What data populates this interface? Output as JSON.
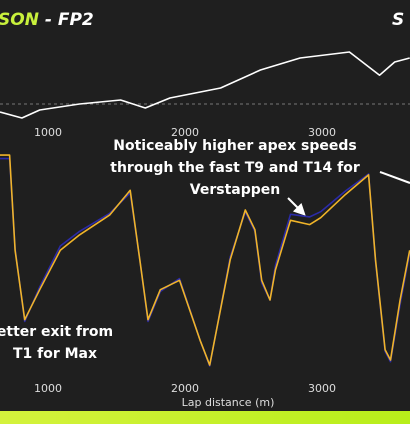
{
  "chart_data": [
    {
      "type": "line",
      "title_parts": [
        "SON",
        " - FP2"
      ],
      "title_right": "S",
      "x": [
        650,
        810,
        940,
        1230,
        1530,
        1710,
        1890,
        2260,
        2550,
        2840,
        3200,
        3420,
        3530,
        3640
      ],
      "series": [
        {
          "color": "#ffffff",
          "values": [
            -0.1,
            -0.175,
            -0.075,
            0.0,
            0.05,
            -0.05,
            0.075,
            0.2,
            0.425,
            0.575,
            0.65,
            0.36,
            0.525,
            0.575
          ]
        }
      ],
      "xlim": [
        650,
        3642
      ],
      "ylim": [
        -0.2,
        0.8
      ],
      "xticks": [
        1000,
        2000,
        3000
      ],
      "zero_line": 0
    },
    {
      "type": "line",
      "x": [
        650,
        720,
        760,
        830,
        940,
        1090,
        1230,
        1450,
        1600,
        1670,
        1730,
        1820,
        1960,
        2110,
        2180,
        2330,
        2440,
        2510,
        2560,
        2620,
        2660,
        2770,
        2910,
        2990,
        3170,
        3340,
        3390,
        3460,
        3500,
        3570,
        3640
      ],
      "series": [
        {
          "color": "#2b2ba8",
          "values": [
            330,
            330,
            225,
            140,
            180,
            228,
            245,
            266,
            290,
            212,
            140,
            175,
            190,
            118,
            88,
            215,
            268,
            245,
            185,
            165,
            205,
            265,
            262,
            268,
            292,
            312,
            210,
            105,
            93,
            160,
            220
          ]
        },
        {
          "color": "#f0b429",
          "values": [
            334,
            334,
            223,
            142,
            177,
            223,
            241,
            264,
            293,
            212,
            142,
            177,
            188,
            118,
            89,
            212,
            270,
            247,
            188,
            165,
            200,
            258,
            253,
            261,
            288,
            311,
            212,
            107,
            95,
            165,
            223
          ]
        }
      ],
      "xlim": [
        650,
        3642
      ],
      "ylim": [
        60,
        340
      ],
      "xticks": [
        1000,
        2000,
        3000
      ],
      "xlabel": "Lap distance (m)",
      "annotations": [
        {
          "lines": [
            "Noticeably higher apex speeds",
            "through the fast T9 and T14 for",
            "Verstappen"
          ]
        },
        {
          "lines": [
            "etter exit from",
            "T1 for Max"
          ]
        }
      ]
    }
  ]
}
